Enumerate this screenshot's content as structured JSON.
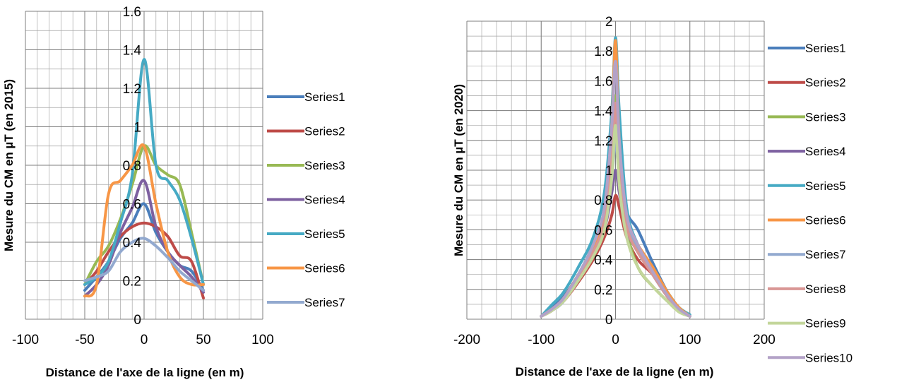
{
  "chart_data": [
    {
      "type": "line",
      "title": "",
      "xlabel": "Distance de l'axe de la ligne (en m)",
      "ylabel": "Mesure  du CM en µT (en 2015)",
      "xlim": [
        -100,
        100
      ],
      "ylim": [
        0,
        1.6
      ],
      "xticks": [
        "-100",
        "-50",
        "0",
        "50",
        "100"
      ],
      "yticks": [
        "0",
        "0.2",
        "0.4",
        "0.6",
        "0.8",
        "1",
        "1.2",
        "1.4",
        "1.6"
      ],
      "grid": true,
      "legend": "right",
      "series": [
        {
          "name": "Series1",
          "color": "#4a7ebb",
          "points": [
            [
              -50,
              0.15
            ],
            [
              -40,
              0.22
            ],
            [
              -30,
              0.3
            ],
            [
              -20,
              0.42
            ],
            [
              -10,
              0.5
            ],
            [
              0,
              0.6
            ],
            [
              10,
              0.45
            ],
            [
              20,
              0.35
            ],
            [
              30,
              0.28
            ],
            [
              40,
              0.25
            ],
            [
              50,
              0.15
            ]
          ]
        },
        {
          "name": "Series2",
          "color": "#be4b48",
          "points": [
            [
              -50,
              0.18
            ],
            [
              -40,
              0.25
            ],
            [
              -30,
              0.35
            ],
            [
              -20,
              0.43
            ],
            [
              -10,
              0.48
            ],
            [
              0,
              0.5
            ],
            [
              10,
              0.48
            ],
            [
              20,
              0.43
            ],
            [
              30,
              0.33
            ],
            [
              40,
              0.3
            ],
            [
              50,
              0.11
            ]
          ]
        },
        {
          "name": "Series3",
          "color": "#98b954",
          "points": [
            [
              -50,
              0.18
            ],
            [
              -40,
              0.3
            ],
            [
              -30,
              0.38
            ],
            [
              -20,
              0.52
            ],
            [
              -10,
              0.7
            ],
            [
              0,
              0.9
            ],
            [
              10,
              0.8
            ],
            [
              20,
              0.75
            ],
            [
              30,
              0.7
            ],
            [
              40,
              0.45
            ],
            [
              50,
              0.18
            ]
          ]
        },
        {
          "name": "Series4",
          "color": "#7d60a0",
          "points": [
            [
              -50,
              0.12
            ],
            [
              -40,
              0.18
            ],
            [
              -30,
              0.28
            ],
            [
              -20,
              0.45
            ],
            [
              -10,
              0.58
            ],
            [
              0,
              0.72
            ],
            [
              10,
              0.48
            ],
            [
              20,
              0.35
            ],
            [
              30,
              0.28
            ],
            [
              40,
              0.22
            ],
            [
              50,
              0.14
            ]
          ]
        },
        {
          "name": "Series5",
          "color": "#46aac4",
          "points": [
            [
              -50,
              0.18
            ],
            [
              -40,
              0.22
            ],
            [
              -30,
              0.3
            ],
            [
              -20,
              0.5
            ],
            [
              -10,
              0.75
            ],
            [
              0,
              1.35
            ],
            [
              10,
              0.8
            ],
            [
              20,
              0.72
            ],
            [
              30,
              0.62
            ],
            [
              40,
              0.42
            ],
            [
              50,
              0.18
            ]
          ]
        },
        {
          "name": "Series6",
          "color": "#f79646",
          "points": [
            [
              -50,
              0.12
            ],
            [
              -40,
              0.18
            ],
            [
              -30,
              0.65
            ],
            [
              -20,
              0.72
            ],
            [
              -10,
              0.8
            ],
            [
              0,
              0.9
            ],
            [
              10,
              0.6
            ],
            [
              20,
              0.35
            ],
            [
              30,
              0.22
            ],
            [
              40,
              0.18
            ],
            [
              50,
              0.18
            ]
          ]
        },
        {
          "name": "Series7",
          "color": "#92a9cf",
          "points": [
            [
              -50,
              0.2
            ],
            [
              -40,
              0.22
            ],
            [
              -30,
              0.25
            ],
            [
              -20,
              0.35
            ],
            [
              -10,
              0.4
            ],
            [
              0,
              0.42
            ],
            [
              10,
              0.38
            ],
            [
              20,
              0.32
            ],
            [
              30,
              0.25
            ],
            [
              40,
              0.2
            ],
            [
              50,
              0.15
            ]
          ]
        }
      ]
    },
    {
      "type": "line",
      "title": "",
      "xlabel": "Distance de l'axe de la ligne (en m)",
      "ylabel": "Mesure du CM en µT (en 2020)",
      "xlim": [
        -200,
        200
      ],
      "ylim": [
        0,
        2
      ],
      "xticks": [
        "-200",
        "-100",
        "0",
        "100",
        "200"
      ],
      "yticks": [
        "0",
        "0.2",
        "0.4",
        "0.6",
        "0.8",
        "1",
        "1.2",
        "1.4",
        "1.6",
        "1.8",
        "2"
      ],
      "grid": true,
      "legend": "right",
      "series": [
        {
          "name": "Series1",
          "color": "#4a7ebb",
          "points": [
            [
              -100,
              0.02
            ],
            [
              -85,
              0.08
            ],
            [
              -70,
              0.15
            ],
            [
              -50,
              0.3
            ],
            [
              -30,
              0.5
            ],
            [
              -15,
              0.7
            ],
            [
              -5,
              1.0
            ],
            [
              0,
              1.3
            ],
            [
              5,
              1.0
            ],
            [
              15,
              0.72
            ],
            [
              30,
              0.6
            ],
            [
              50,
              0.38
            ],
            [
              70,
              0.18
            ],
            [
              85,
              0.08
            ],
            [
              100,
              0.02
            ]
          ]
        },
        {
          "name": "Series2",
          "color": "#be4b48",
          "points": [
            [
              -100,
              0.02
            ],
            [
              -85,
              0.06
            ],
            [
              -70,
              0.12
            ],
            [
              -50,
              0.25
            ],
            [
              -30,
              0.4
            ],
            [
              -15,
              0.55
            ],
            [
              -5,
              0.7
            ],
            [
              0,
              0.83
            ],
            [
              5,
              0.75
            ],
            [
              15,
              0.55
            ],
            [
              30,
              0.4
            ],
            [
              50,
              0.3
            ],
            [
              70,
              0.15
            ],
            [
              85,
              0.06
            ],
            [
              100,
              0.02
            ]
          ]
        },
        {
          "name": "Series3",
          "color": "#98b954",
          "points": [
            [
              -100,
              0.02
            ],
            [
              -85,
              0.06
            ],
            [
              -70,
              0.14
            ],
            [
              -50,
              0.28
            ],
            [
              -30,
              0.45
            ],
            [
              -15,
              0.65
            ],
            [
              -5,
              1.1
            ],
            [
              0,
              1.5
            ],
            [
              5,
              1.0
            ],
            [
              15,
              0.6
            ],
            [
              30,
              0.35
            ],
            [
              50,
              0.22
            ],
            [
              70,
              0.12
            ],
            [
              85,
              0.05
            ],
            [
              100,
              0.02
            ]
          ]
        },
        {
          "name": "Series4",
          "color": "#7d60a0",
          "points": [
            [
              -100,
              0.02
            ],
            [
              -85,
              0.07
            ],
            [
              -70,
              0.13
            ],
            [
              -50,
              0.28
            ],
            [
              -30,
              0.42
            ],
            [
              -15,
              0.6
            ],
            [
              -5,
              0.85
            ],
            [
              0,
              1.0
            ],
            [
              5,
              0.85
            ],
            [
              15,
              0.6
            ],
            [
              30,
              0.45
            ],
            [
              50,
              0.3
            ],
            [
              70,
              0.15
            ],
            [
              85,
              0.06
            ],
            [
              100,
              0.02
            ]
          ]
        },
        {
          "name": "Series5",
          "color": "#46aac4",
          "points": [
            [
              -100,
              0.02
            ],
            [
              -85,
              0.1
            ],
            [
              -70,
              0.18
            ],
            [
              -50,
              0.35
            ],
            [
              -30,
              0.55
            ],
            [
              -15,
              0.85
            ],
            [
              -5,
              1.4
            ],
            [
              0,
              1.89
            ],
            [
              5,
              1.4
            ],
            [
              15,
              0.75
            ],
            [
              30,
              0.5
            ],
            [
              50,
              0.32
            ],
            [
              70,
              0.18
            ],
            [
              85,
              0.08
            ],
            [
              100,
              0.03
            ]
          ]
        },
        {
          "name": "Series6",
          "color": "#f79646",
          "points": [
            [
              -100,
              0.02
            ],
            [
              -85,
              0.07
            ],
            [
              -70,
              0.14
            ],
            [
              -50,
              0.3
            ],
            [
              -30,
              0.48
            ],
            [
              -15,
              0.7
            ],
            [
              -5,
              1.3
            ],
            [
              0,
              1.87
            ],
            [
              5,
              1.2
            ],
            [
              15,
              0.65
            ],
            [
              30,
              0.5
            ],
            [
              50,
              0.35
            ],
            [
              70,
              0.18
            ],
            [
              85,
              0.08
            ],
            [
              100,
              0.02
            ]
          ]
        },
        {
          "name": "Series7",
          "color": "#92a9cf",
          "points": [
            [
              -100,
              0.02
            ],
            [
              -85,
              0.06
            ],
            [
              -70,
              0.12
            ],
            [
              -50,
              0.28
            ],
            [
              -30,
              0.45
            ],
            [
              -15,
              0.62
            ],
            [
              -5,
              0.95
            ],
            [
              0,
              1.2
            ],
            [
              5,
              0.95
            ],
            [
              15,
              0.65
            ],
            [
              30,
              0.48
            ],
            [
              50,
              0.3
            ],
            [
              70,
              0.15
            ],
            [
              85,
              0.06
            ],
            [
              100,
              0.02
            ]
          ]
        },
        {
          "name": "Series8",
          "color": "#d99694",
          "points": [
            [
              -100,
              0.02
            ],
            [
              -85,
              0.06
            ],
            [
              -70,
              0.13
            ],
            [
              -50,
              0.28
            ],
            [
              -30,
              0.45
            ],
            [
              -15,
              0.65
            ],
            [
              -5,
              1.05
            ],
            [
              0,
              1.45
            ],
            [
              5,
              1.0
            ],
            [
              15,
              0.62
            ],
            [
              30,
              0.45
            ],
            [
              50,
              0.3
            ],
            [
              70,
              0.15
            ],
            [
              85,
              0.06
            ],
            [
              100,
              0.02
            ]
          ]
        },
        {
          "name": "Series9",
          "color": "#c3d69b",
          "points": [
            [
              -100,
              0.02
            ],
            [
              -85,
              0.06
            ],
            [
              -70,
              0.12
            ],
            [
              -50,
              0.26
            ],
            [
              -30,
              0.42
            ],
            [
              -15,
              0.6
            ],
            [
              -5,
              0.95
            ],
            [
              0,
              1.3
            ],
            [
              5,
              0.9
            ],
            [
              15,
              0.55
            ],
            [
              30,
              0.35
            ],
            [
              50,
              0.22
            ],
            [
              70,
              0.12
            ],
            [
              85,
              0.05
            ],
            [
              100,
              0.02
            ]
          ]
        },
        {
          "name": "Series10",
          "color": "#b3a2c7",
          "points": [
            [
              -100,
              0.02
            ],
            [
              -85,
              0.07
            ],
            [
              -70,
              0.14
            ],
            [
              -50,
              0.3
            ],
            [
              -30,
              0.5
            ],
            [
              -15,
              0.75
            ],
            [
              -5,
              1.3
            ],
            [
              0,
              1.73
            ],
            [
              5,
              1.2
            ],
            [
              15,
              0.7
            ],
            [
              30,
              0.5
            ],
            [
              50,
              0.32
            ],
            [
              70,
              0.16
            ],
            [
              85,
              0.07
            ],
            [
              100,
              0.02
            ]
          ]
        }
      ]
    }
  ]
}
